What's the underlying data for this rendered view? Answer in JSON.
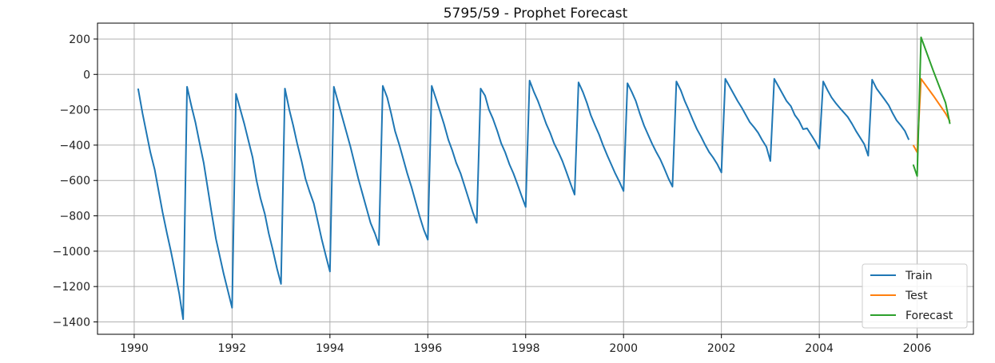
{
  "chart_data": {
    "type": "line",
    "title": "5795/59 - Prophet Forecast",
    "xlabel": "",
    "ylabel": "",
    "xlim": [
      1989.25,
      2007.15
    ],
    "ylim": [
      -1470,
      290
    ],
    "x_ticks": [
      1990,
      1992,
      1994,
      1996,
      1998,
      2000,
      2002,
      2004,
      2006
    ],
    "x_tick_labels": [
      "1990",
      "1992",
      "1994",
      "1996",
      "1998",
      "2000",
      "2002",
      "2004",
      "2006"
    ],
    "y_ticks": [
      200,
      0,
      -200,
      -400,
      -600,
      -800,
      -1000,
      -1200,
      -1400
    ],
    "y_tick_labels": [
      "200",
      "0",
      "−200",
      "−400",
      "−600",
      "−800",
      "−1000",
      "−1200",
      "−1400"
    ],
    "grid": true,
    "legend": {
      "placement": "bottom-right"
    },
    "series": [
      {
        "name": "Train",
        "color": "#1f77b4",
        "points": [
          [
            1990.08,
            -80
          ],
          [
            1990.17,
            -220
          ],
          [
            1990.25,
            -330
          ],
          [
            1990.33,
            -440
          ],
          [
            1990.42,
            -540
          ],
          [
            1990.5,
            -660
          ],
          [
            1990.58,
            -780
          ],
          [
            1990.67,
            -900
          ],
          [
            1990.75,
            -1000
          ],
          [
            1990.83,
            -1110
          ],
          [
            1990.92,
            -1240
          ],
          [
            1991.0,
            -1385
          ],
          [
            1991.08,
            -70
          ],
          [
            1991.17,
            -180
          ],
          [
            1991.25,
            -270
          ],
          [
            1991.33,
            -380
          ],
          [
            1991.42,
            -500
          ],
          [
            1991.5,
            -640
          ],
          [
            1991.58,
            -780
          ],
          [
            1991.67,
            -930
          ],
          [
            1991.75,
            -1030
          ],
          [
            1991.83,
            -1130
          ],
          [
            1991.92,
            -1230
          ],
          [
            1992.0,
            -1320
          ],
          [
            1992.08,
            -110
          ],
          [
            1992.17,
            -200
          ],
          [
            1992.25,
            -280
          ],
          [
            1992.33,
            -370
          ],
          [
            1992.42,
            -470
          ],
          [
            1992.5,
            -600
          ],
          [
            1992.58,
            -700
          ],
          [
            1992.67,
            -790
          ],
          [
            1992.75,
            -900
          ],
          [
            1992.83,
            -990
          ],
          [
            1992.92,
            -1100
          ],
          [
            1993.0,
            -1185
          ],
          [
            1993.08,
            -80
          ],
          [
            1993.17,
            -200
          ],
          [
            1993.25,
            -290
          ],
          [
            1993.33,
            -390
          ],
          [
            1993.42,
            -490
          ],
          [
            1993.5,
            -590
          ],
          [
            1993.58,
            -660
          ],
          [
            1993.67,
            -730
          ],
          [
            1993.75,
            -830
          ],
          [
            1993.83,
            -930
          ],
          [
            1993.92,
            -1030
          ],
          [
            1994.0,
            -1115
          ],
          [
            1994.08,
            -70
          ],
          [
            1994.17,
            -160
          ],
          [
            1994.25,
            -240
          ],
          [
            1994.33,
            -320
          ],
          [
            1994.42,
            -410
          ],
          [
            1994.5,
            -500
          ],
          [
            1994.58,
            -590
          ],
          [
            1994.67,
            -680
          ],
          [
            1994.75,
            -760
          ],
          [
            1994.83,
            -840
          ],
          [
            1994.92,
            -900
          ],
          [
            1995.0,
            -965
          ],
          [
            1995.08,
            -65
          ],
          [
            1995.17,
            -130
          ],
          [
            1995.25,
            -220
          ],
          [
            1995.33,
            -320
          ],
          [
            1995.42,
            -400
          ],
          [
            1995.5,
            -480
          ],
          [
            1995.58,
            -560
          ],
          [
            1995.67,
            -640
          ],
          [
            1995.75,
            -720
          ],
          [
            1995.83,
            -800
          ],
          [
            1995.92,
            -880
          ],
          [
            1996.0,
            -935
          ],
          [
            1996.08,
            -65
          ],
          [
            1996.17,
            -140
          ],
          [
            1996.25,
            -210
          ],
          [
            1996.33,
            -280
          ],
          [
            1996.42,
            -370
          ],
          [
            1996.5,
            -430
          ],
          [
            1996.58,
            -500
          ],
          [
            1996.67,
            -560
          ],
          [
            1996.75,
            -630
          ],
          [
            1996.83,
            -700
          ],
          [
            1996.92,
            -780
          ],
          [
            1997.0,
            -840
          ],
          [
            1997.08,
            -80
          ],
          [
            1997.17,
            -120
          ],
          [
            1997.25,
            -200
          ],
          [
            1997.33,
            -250
          ],
          [
            1997.42,
            -320
          ],
          [
            1997.5,
            -390
          ],
          [
            1997.58,
            -440
          ],
          [
            1997.67,
            -510
          ],
          [
            1997.75,
            -560
          ],
          [
            1997.83,
            -620
          ],
          [
            1997.92,
            -690
          ],
          [
            1998.0,
            -750
          ],
          [
            1998.08,
            -35
          ],
          [
            1998.17,
            -100
          ],
          [
            1998.25,
            -150
          ],
          [
            1998.33,
            -210
          ],
          [
            1998.42,
            -280
          ],
          [
            1998.5,
            -330
          ],
          [
            1998.58,
            -390
          ],
          [
            1998.67,
            -440
          ],
          [
            1998.75,
            -490
          ],
          [
            1998.83,
            -550
          ],
          [
            1998.92,
            -620
          ],
          [
            1999.0,
            -680
          ],
          [
            1999.08,
            -45
          ],
          [
            1999.17,
            -100
          ],
          [
            1999.25,
            -160
          ],
          [
            1999.33,
            -230
          ],
          [
            1999.42,
            -290
          ],
          [
            1999.5,
            -340
          ],
          [
            1999.58,
            -400
          ],
          [
            1999.67,
            -460
          ],
          [
            1999.75,
            -510
          ],
          [
            1999.83,
            -560
          ],
          [
            1999.92,
            -610
          ],
          [
            2000.0,
            -660
          ],
          [
            2000.08,
            -50
          ],
          [
            2000.17,
            -100
          ],
          [
            2000.25,
            -150
          ],
          [
            2000.33,
            -220
          ],
          [
            2000.42,
            -290
          ],
          [
            2000.5,
            -340
          ],
          [
            2000.58,
            -390
          ],
          [
            2000.67,
            -440
          ],
          [
            2000.75,
            -480
          ],
          [
            2000.83,
            -530
          ],
          [
            2000.92,
            -590
          ],
          [
            2001.0,
            -635
          ],
          [
            2001.08,
            -40
          ],
          [
            2001.17,
            -90
          ],
          [
            2001.25,
            -150
          ],
          [
            2001.33,
            -200
          ],
          [
            2001.42,
            -260
          ],
          [
            2001.5,
            -310
          ],
          [
            2001.58,
            -350
          ],
          [
            2001.67,
            -400
          ],
          [
            2001.75,
            -440
          ],
          [
            2001.83,
            -470
          ],
          [
            2001.92,
            -510
          ],
          [
            2002.0,
            -555
          ],
          [
            2002.08,
            -25
          ],
          [
            2002.17,
            -70
          ],
          [
            2002.25,
            -110
          ],
          [
            2002.33,
            -150
          ],
          [
            2002.42,
            -190
          ],
          [
            2002.5,
            -230
          ],
          [
            2002.58,
            -270
          ],
          [
            2002.67,
            -300
          ],
          [
            2002.75,
            -330
          ],
          [
            2002.83,
            -370
          ],
          [
            2002.92,
            -410
          ],
          [
            2003.0,
            -490
          ],
          [
            2003.08,
            -25
          ],
          [
            2003.17,
            -70
          ],
          [
            2003.25,
            -110
          ],
          [
            2003.33,
            -150
          ],
          [
            2003.42,
            -180
          ],
          [
            2003.5,
            -230
          ],
          [
            2003.58,
            -260
          ],
          [
            2003.67,
            -310
          ],
          [
            2003.75,
            -305
          ],
          [
            2003.83,
            -340
          ],
          [
            2003.92,
            -380
          ],
          [
            2004.0,
            -420
          ],
          [
            2004.08,
            -40
          ],
          [
            2004.17,
            -90
          ],
          [
            2004.25,
            -130
          ],
          [
            2004.33,
            -160
          ],
          [
            2004.42,
            -190
          ],
          [
            2004.5,
            -215
          ],
          [
            2004.58,
            -240
          ],
          [
            2004.67,
            -280
          ],
          [
            2004.75,
            -320
          ],
          [
            2004.83,
            -355
          ],
          [
            2004.92,
            -395
          ],
          [
            2005.0,
            -460
          ],
          [
            2005.08,
            -30
          ],
          [
            2005.17,
            -80
          ],
          [
            2005.25,
            -110
          ],
          [
            2005.33,
            -140
          ],
          [
            2005.42,
            -175
          ],
          [
            2005.5,
            -220
          ],
          [
            2005.58,
            -260
          ],
          [
            2005.67,
            -290
          ],
          [
            2005.75,
            -320
          ],
          [
            2005.83,
            -370
          ]
        ]
      },
      {
        "name": "Test",
        "color": "#ff7f0e",
        "points": [
          [
            2005.92,
            -400
          ],
          [
            2006.0,
            -440
          ],
          [
            2006.08,
            -25
          ],
          [
            2006.33,
            -120
          ],
          [
            2006.58,
            -220
          ],
          [
            2006.67,
            -265
          ]
        ]
      },
      {
        "name": "Forecast",
        "color": "#2ca02c",
        "points": [
          [
            2005.92,
            -510
          ],
          [
            2006.0,
            -575
          ],
          [
            2006.08,
            210
          ],
          [
            2006.33,
            20
          ],
          [
            2006.58,
            -160
          ],
          [
            2006.67,
            -280
          ]
        ]
      }
    ]
  }
}
